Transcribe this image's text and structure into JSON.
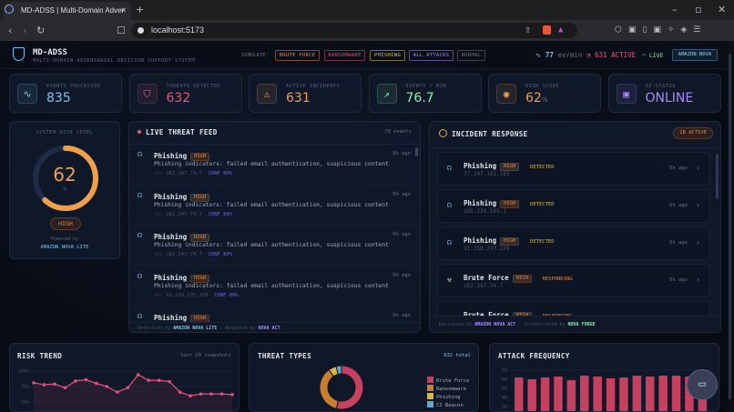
{
  "browser": {
    "tab_title": "MD-ADSS | Multi-Domain Adver",
    "url": "localhost:5173"
  },
  "header": {
    "title": "MD-ADSS",
    "subtitle": "MULTI-DOMAIN ADVERSARIAL DECISION SUPPORT SYSTEM",
    "simulate_label": "SIMULATE:",
    "sim_buttons": [
      {
        "label": "BRUTE FORCE",
        "color": "#e0894a"
      },
      {
        "label": "RANSOMWARE",
        "color": "#d9546f"
      },
      {
        "label": "PHISHING",
        "color": "#e5c558"
      },
      {
        "label": "ALL ATTACKS",
        "color": "#a78bfa"
      },
      {
        "label": "NORMAL",
        "color": "#6b7280"
      }
    ],
    "rate": "77",
    "rate_unit": "ev/min",
    "active": "631 ACTIVE",
    "live": "LIVE",
    "nova_button": "AMAZON NOVA"
  },
  "stats": [
    {
      "label": "EVENTS PROCESSED",
      "value": "835",
      "icon": "activity-icon",
      "color": "#7cc4f0"
    },
    {
      "label": "THREATS DETECTED",
      "value": "632",
      "icon": "shield-icon",
      "color": "#e45b7b"
    },
    {
      "label": "ACTIVE INCIDENTS",
      "value": "631",
      "icon": "warning-icon",
      "color": "#f0a04b"
    },
    {
      "label": "EVENTS / MIN",
      "value": "76.7",
      "icon": "trending-up-icon",
      "color": "#86efac"
    },
    {
      "label": "RISK SCORE",
      "value": "62",
      "unit": "%",
      "icon": "eye-icon",
      "color": "#f0a04b"
    },
    {
      "label": "AI STATUS",
      "value": "ONLINE",
      "icon": "cpu-icon",
      "color": "#a78bfa"
    }
  ],
  "risk": {
    "title": "SYSTEM RISK LEVEL",
    "value": "62",
    "unit": "%",
    "percent": 62,
    "level": "HIGH",
    "powered": "Powered by",
    "model": "AMAZON NOVA LITE"
  },
  "feed": {
    "title": "LIVE THREAT FEED",
    "count": "78 events",
    "items": [
      {
        "type": "Phishing",
        "severity": "HIGH",
        "time": "5h ago",
        "desc": "Phishing indicators: failed email authentication, suspicious content",
        "src_label": "SRC",
        "src": "162.247.74.7",
        "conf": "CONF 80%"
      },
      {
        "type": "Phishing",
        "severity": "HIGH",
        "time": "5h ago",
        "desc": "Phishing indicators: failed email authentication, suspicious content",
        "src_label": "SRC",
        "src": "162.247.74.7",
        "conf": "CONF 80%"
      },
      {
        "type": "Phishing",
        "severity": "HIGH",
        "time": "5h ago",
        "desc": "Phishing indicators: failed email authentication, suspicious content",
        "src_label": "SRC",
        "src": "162.247.74.7",
        "conf": "CONF 80%"
      },
      {
        "type": "Phishing",
        "severity": "HIGH",
        "time": "5h ago",
        "desc": "Phishing indicators: failed email authentication, suspicious content",
        "src_label": "SRC",
        "src": "91.219.237.229",
        "conf": "CONF 80%"
      },
      {
        "type": "Phishing",
        "severity": "HIGH",
        "time": "5h ago",
        "desc": "",
        "src_label": "",
        "src": "",
        "conf": ""
      }
    ],
    "footer": {
      "a": "Detection by",
      "b": "AMAZON NOVA LITE",
      "sep": "·",
      "c": "Response by",
      "d": "NOVA ACT"
    }
  },
  "incidents": {
    "title": "INCIDENT RESPONSE",
    "badge": "28 ACTIVE",
    "items": [
      {
        "type": "Phishing",
        "severity": "HIGH",
        "status": "DETECTED",
        "ip": "77.247.181.163",
        "time": "5h ago",
        "icon": "phishing-hook-icon"
      },
      {
        "type": "Phishing",
        "severity": "HIGH",
        "status": "DETECTED",
        "ip": "185.220.101.1",
        "time": "5h ago",
        "icon": "phishing-hook-icon"
      },
      {
        "type": "Phishing",
        "severity": "HIGH",
        "status": "DETECTED",
        "ip": "91.219.237.229",
        "time": "5h ago",
        "icon": "phishing-hook-icon"
      },
      {
        "type": "Brute Force",
        "severity": "HIGH",
        "status": "RESPONDING",
        "ip": "162.247.74.7",
        "time": "5h ago",
        "icon": "hammer-icon"
      },
      {
        "type": "Brute Force",
        "severity": "HIGH",
        "status": "RESPONDING",
        "ip": "",
        "time": "",
        "icon": "hammer-icon"
      }
    ],
    "footer": {
      "a": "Decisions by",
      "b": "AMAZON NOVA ACT",
      "sep": "·",
      "c": "Orchestrated by",
      "d": "NOVA FORGE"
    }
  },
  "chart_data": [
    {
      "type": "line",
      "title": "RISK TREND",
      "subtitle": "last 20 snapshots",
      "yticks": [
        "100%",
        "75%",
        "50%"
      ],
      "ylim": [
        0,
        100
      ],
      "grid": true,
      "color": "#e0507a",
      "values": [
        81,
        78,
        79,
        73,
        84,
        86,
        80,
        75,
        66,
        73,
        94,
        85,
        85,
        83,
        66,
        60,
        63,
        63,
        63,
        62
      ]
    },
    {
      "type": "pie",
      "title": "THREAT TYPES",
      "subtitle": "632 total",
      "legend": "right",
      "slices": [
        {
          "name": "Brute Force",
          "value": 340,
          "color": "#c8405f"
        },
        {
          "name": "Ransomware",
          "value": 230,
          "color": "#c97d2e"
        },
        {
          "name": "Phishing",
          "value": 37,
          "color": "#d4b84a"
        },
        {
          "name": "C2 Beacon",
          "value": 25,
          "color": "#5aa9d6"
        }
      ]
    },
    {
      "type": "bar",
      "title": "ATTACK FREQUENCY",
      "yticks": [
        "70",
        "60",
        "50",
        "40",
        "30"
      ],
      "ylim": [
        0,
        70
      ],
      "grid": true,
      "color": "#c8405f",
      "values": [
        62,
        60,
        62,
        63,
        59,
        64,
        63,
        61,
        62,
        64,
        63,
        64,
        64,
        63,
        58
      ]
    }
  ]
}
